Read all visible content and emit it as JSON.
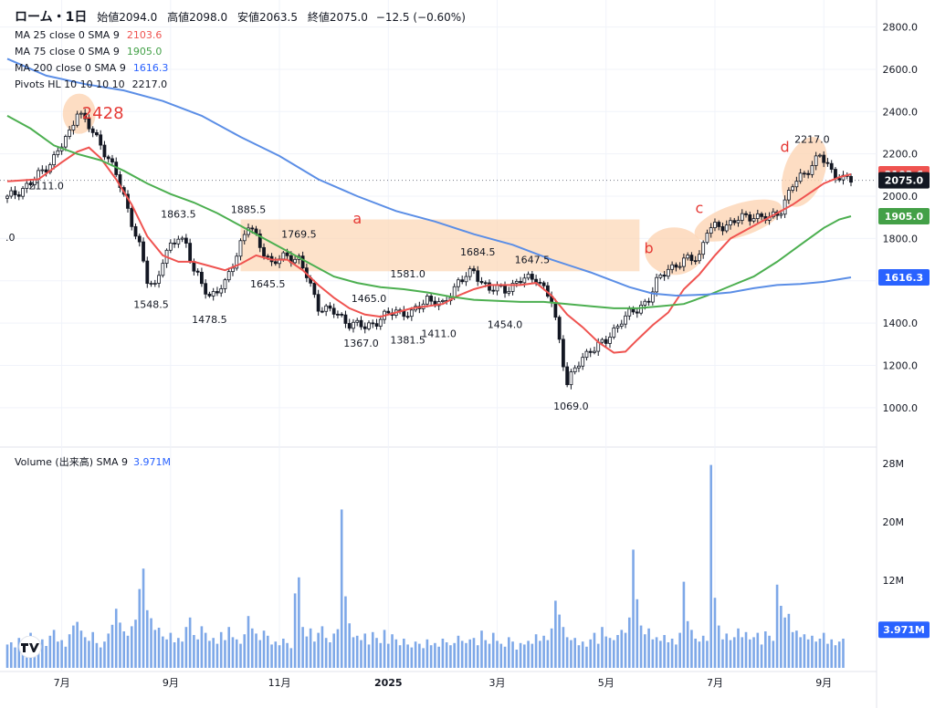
{
  "header": {
    "symbol_title": "ローム・1日",
    "open_label": "始値",
    "open": "2094.0",
    "high_label": "高値",
    "high": "2098.0",
    "low_label": "安値",
    "low": "2063.5",
    "close_label": "終値",
    "close": "2075.0",
    "change": "−12.5 (−0.60%)"
  },
  "legend": [
    {
      "label": "MA 25 close 0 SMA 9",
      "value": "2103.6",
      "color": "#ef5350"
    },
    {
      "label": "MA 75 close 0 SMA 9",
      "value": "1905.0",
      "color": "#4caf50"
    },
    {
      "label": "MA 200 close 0 SMA 9",
      "value": "1616.3",
      "color": "#2962ff"
    },
    {
      "label": "Pivots HL 10 10 10 10",
      "value": "2217.0",
      "color": "#131722"
    }
  ],
  "volume_legend": {
    "label": "Volume (出来高) SMA 9",
    "value": "3.971M"
  },
  "colors": {
    "up": "#ffffff",
    "down": "#131722",
    "ma25": "#ef5350",
    "ma75": "#4caf50",
    "ma200": "#5b8ee6",
    "volume": "#7ea8e8",
    "highlight": "#fcd5b4",
    "annotation": "#e53935"
  },
  "chart_data": {
    "type": "line",
    "price_axis": {
      "ylim": [
        900,
        2850
      ],
      "ticks": [
        1000,
        1200,
        1400,
        1600,
        1800,
        2000,
        2200,
        2400,
        2600,
        2800
      ],
      "tick_labels": [
        "1000.0",
        "1200.0",
        "1400.0",
        "1600.0",
        "1800.0",
        "2000.0",
        "2200.0",
        "2400.0",
        "2600.0",
        "2800.0"
      ]
    },
    "volume_axis": {
      "ylim": [
        0,
        29
      ],
      "ticks": [
        12,
        20,
        28
      ],
      "tick_labels": [
        "12M",
        "20M",
        "28M"
      ]
    },
    "time_axis_labels": [
      "7月",
      "9月",
      "11月",
      "2025",
      "3月",
      "5月",
      "7月",
      "9月"
    ],
    "time_axis_index": [
      14,
      42,
      70,
      98,
      126,
      154,
      182,
      210
    ],
    "n_days": 218,
    "price_path": [
      [
        0,
        1990
      ],
      [
        6,
        2060
      ],
      [
        12,
        2180
      ],
      [
        16,
        2300
      ],
      [
        18,
        2410
      ],
      [
        20,
        2350
      ],
      [
        24,
        2250
      ],
      [
        28,
        2100
      ],
      [
        30,
        2000
      ],
      [
        32,
        1880
      ],
      [
        34,
        1760
      ],
      [
        36,
        1600
      ],
      [
        38,
        1580
      ],
      [
        40,
        1700
      ],
      [
        44,
        1810
      ],
      [
        46,
        1780
      ],
      [
        48,
        1640
      ],
      [
        52,
        1530
      ],
      [
        56,
        1580
      ],
      [
        60,
        1780
      ],
      [
        62,
        1860
      ],
      [
        64,
        1800
      ],
      [
        68,
        1680
      ],
      [
        72,
        1720
      ],
      [
        75,
        1700
      ],
      [
        77,
        1620
      ],
      [
        80,
        1480
      ],
      [
        84,
        1450
      ],
      [
        88,
        1400
      ],
      [
        92,
        1380
      ],
      [
        96,
        1420
      ],
      [
        100,
        1460
      ],
      [
        104,
        1440
      ],
      [
        108,
        1520
      ],
      [
        112,
        1480
      ],
      [
        116,
        1600
      ],
      [
        120,
        1640
      ],
      [
        124,
        1560
      ],
      [
        128,
        1560
      ],
      [
        132,
        1600
      ],
      [
        136,
        1620
      ],
      [
        138,
        1560
      ],
      [
        140,
        1500
      ],
      [
        142,
        1320
      ],
      [
        144,
        1120
      ],
      [
        146,
        1180
      ],
      [
        150,
        1280
      ],
      [
        154,
        1310
      ],
      [
        158,
        1420
      ],
      [
        162,
        1460
      ],
      [
        165,
        1520
      ],
      [
        167,
        1590
      ],
      [
        170,
        1660
      ],
      [
        174,
        1690
      ],
      [
        178,
        1720
      ],
      [
        180,
        1840
      ],
      [
        184,
        1860
      ],
      [
        188,
        1890
      ],
      [
        192,
        1910
      ],
      [
        196,
        1890
      ],
      [
        199,
        1940
      ],
      [
        202,
        2050
      ],
      [
        206,
        2130
      ],
      [
        209,
        2190
      ],
      [
        212,
        2120
      ],
      [
        215,
        2080
      ],
      [
        217,
        2075
      ]
    ],
    "series": [
      {
        "name": "MA 25 close 0 SMA 9",
        "points": [
          [
            0,
            2070
          ],
          [
            8,
            2080
          ],
          [
            14,
            2160
          ],
          [
            18,
            2210
          ],
          [
            21,
            2230
          ],
          [
            24,
            2180
          ],
          [
            28,
            2080
          ],
          [
            32,
            1960
          ],
          [
            36,
            1810
          ],
          [
            40,
            1720
          ],
          [
            44,
            1690
          ],
          [
            48,
            1690
          ],
          [
            52,
            1670
          ],
          [
            56,
            1650
          ],
          [
            60,
            1680
          ],
          [
            64,
            1720
          ],
          [
            68,
            1700
          ],
          [
            72,
            1700
          ],
          [
            76,
            1650
          ],
          [
            80,
            1580
          ],
          [
            84,
            1520
          ],
          [
            88,
            1470
          ],
          [
            92,
            1440
          ],
          [
            96,
            1430
          ],
          [
            100,
            1450
          ],
          [
            104,
            1470
          ],
          [
            108,
            1480
          ],
          [
            112,
            1490
          ],
          [
            116,
            1530
          ],
          [
            120,
            1560
          ],
          [
            124,
            1580
          ],
          [
            128,
            1580
          ],
          [
            132,
            1580
          ],
          [
            136,
            1590
          ],
          [
            140,
            1530
          ],
          [
            144,
            1440
          ],
          [
            148,
            1380
          ],
          [
            152,
            1310
          ],
          [
            156,
            1260
          ],
          [
            159,
            1265
          ],
          [
            162,
            1320
          ],
          [
            166,
            1390
          ],
          [
            170,
            1450
          ],
          [
            174,
            1560
          ],
          [
            178,
            1630
          ],
          [
            182,
            1720
          ],
          [
            186,
            1800
          ],
          [
            190,
            1840
          ],
          [
            194,
            1880
          ],
          [
            198,
            1920
          ],
          [
            202,
            1960
          ],
          [
            206,
            2010
          ],
          [
            210,
            2060
          ],
          [
            214,
            2090
          ],
          [
            217,
            2103.6
          ]
        ]
      },
      {
        "name": "MA 75 close 0 SMA 9",
        "points": [
          [
            0,
            2380
          ],
          [
            6,
            2320
          ],
          [
            12,
            2240
          ],
          [
            18,
            2200
          ],
          [
            24,
            2170
          ],
          [
            30,
            2120
          ],
          [
            36,
            2060
          ],
          [
            42,
            2010
          ],
          [
            48,
            1970
          ],
          [
            54,
            1920
          ],
          [
            60,
            1860
          ],
          [
            66,
            1800
          ],
          [
            72,
            1740
          ],
          [
            78,
            1680
          ],
          [
            84,
            1620
          ],
          [
            90,
            1590
          ],
          [
            96,
            1570
          ],
          [
            102,
            1560
          ],
          [
            108,
            1545
          ],
          [
            114,
            1525
          ],
          [
            120,
            1510
          ],
          [
            126,
            1505
          ],
          [
            132,
            1500
          ],
          [
            138,
            1500
          ],
          [
            144,
            1490
          ],
          [
            150,
            1480
          ],
          [
            156,
            1470
          ],
          [
            162,
            1470
          ],
          [
            168,
            1480
          ],
          [
            174,
            1490
          ],
          [
            180,
            1530
          ],
          [
            186,
            1575
          ],
          [
            192,
            1620
          ],
          [
            198,
            1690
          ],
          [
            204,
            1770
          ],
          [
            210,
            1850
          ],
          [
            214,
            1890
          ],
          [
            217,
            1905
          ]
        ]
      },
      {
        "name": "MA 200 close 0 SMA 9",
        "points": [
          [
            0,
            2650
          ],
          [
            10,
            2570
          ],
          [
            20,
            2530
          ],
          [
            30,
            2500
          ],
          [
            40,
            2450
          ],
          [
            50,
            2380
          ],
          [
            60,
            2280
          ],
          [
            70,
            2190
          ],
          [
            80,
            2080
          ],
          [
            90,
            2000
          ],
          [
            100,
            1930
          ],
          [
            110,
            1880
          ],
          [
            120,
            1820
          ],
          [
            130,
            1770
          ],
          [
            140,
            1700
          ],
          [
            150,
            1640
          ],
          [
            160,
            1570
          ],
          [
            166,
            1540
          ],
          [
            172,
            1530
          ],
          [
            180,
            1535
          ],
          [
            186,
            1545
          ],
          [
            192,
            1565
          ],
          [
            198,
            1580
          ],
          [
            204,
            1585
          ],
          [
            210,
            1595
          ],
          [
            217,
            1616.3
          ]
        ]
      }
    ],
    "volume_values": [
      3.2,
      3.5,
      2.8,
      4.1,
      2.9,
      3.3,
      4.8,
      3.1,
      2.6,
      3.9,
      3.0,
      4.4,
      5.2,
      3.6,
      3.8,
      2.9,
      4.6,
      5.8,
      6.3,
      5.1,
      4.2,
      3.7,
      4.9,
      3.4,
      2.8,
      3.6,
      4.7,
      5.9,
      8.1,
      6.2,
      5.0,
      4.4,
      5.7,
      6.6,
      10.8,
      13.6,
      7.9,
      6.8,
      5.2,
      5.5,
      4.3,
      3.9,
      4.8,
      3.5,
      4.1,
      3.6,
      5.6,
      6.9,
      4.5,
      3.9,
      5.7,
      4.8,
      3.7,
      4.1,
      3.3,
      4.9,
      3.8,
      5.6,
      4.2,
      3.9,
      3.3,
      4.6,
      7.1,
      5.4,
      4.7,
      3.8,
      5.1,
      4.4,
      3.2,
      3.6,
      3.1,
      4.0,
      3.4,
      2.7,
      10.2,
      12.4,
      5.6,
      4.3,
      5.4,
      3.6,
      4.8,
      5.7,
      4.1,
      3.5,
      4.7,
      5.3,
      21.7,
      9.8,
      6.1,
      4.2,
      4.4,
      3.8,
      4.7,
      3.2,
      4.9,
      4.1,
      3.4,
      5.2,
      3.3,
      4.6,
      3.9,
      3.1,
      4.0,
      3.2,
      2.8,
      3.6,
      3.3,
      2.7,
      3.9,
      3.1,
      3.4,
      2.9,
      4.0,
      3.5,
      3.1,
      3.4,
      4.4,
      3.7,
      3.4,
      3.9,
      4.1,
      3.1,
      5.1,
      3.8,
      3.3,
      4.8,
      3.7,
      3.3,
      2.9,
      4.2,
      3.6,
      2.5,
      3.4,
      3.2,
      3.7,
      3.3,
      4.6,
      3.7,
      4.4,
      3.8,
      5.4,
      9.2,
      7.3,
      5.6,
      4.2,
      3.8,
      4.1,
      3.1,
      3.6,
      2.9,
      3.9,
      4.8,
      3.3,
      5.6,
      4.3,
      4.1,
      3.8,
      4.5,
      5.2,
      4.8,
      6.9,
      16.2,
      9.4,
      5.8,
      4.6,
      5.4,
      3.9,
      4.2,
      3.7,
      4.5,
      3.5,
      4.0,
      3.2,
      4.8,
      11.8,
      6.4,
      5.2,
      4.0,
      3.6,
      4.4,
      3.7,
      27.8,
      9.6,
      5.8,
      3.9,
      4.7,
      3.8,
      4.2,
      5.4,
      4.2,
      4.9,
      3.9,
      4.2,
      4.8,
      3.2,
      5.0,
      4.4,
      3.7,
      11.4,
      8.5,
      6.9,
      7.4,
      4.9,
      5.1,
      4.2,
      4.6,
      3.9,
      4.4,
      3.6,
      4.0,
      4.8,
      3.3,
      3.9,
      3.1,
      3.6,
      4.0
    ],
    "pivot_labels": [
      {
        "i": 10,
        "v": 2111,
        "text": "2111.0",
        "pos": "below"
      },
      {
        "i": 18,
        "v": 2428,
        "text": "2428",
        "pos": "above"
      },
      {
        "i": 37,
        "v": 1548.5,
        "text": "1548.5",
        "pos": "below"
      },
      {
        "i": 44,
        "v": 1863.5,
        "text": "1863.5",
        "pos": "above"
      },
      {
        "i": 52,
        "v": 1478.5,
        "text": "1478.5",
        "pos": "below"
      },
      {
        "i": 62,
        "v": 1885.5,
        "text": "1885.5",
        "pos": "above"
      },
      {
        "i": 67,
        "v": 1645.5,
        "text": "1645.5",
        "pos": "below"
      },
      {
        "i": 75,
        "v": 1769.5,
        "text": "1769.5",
        "pos": "above"
      },
      {
        "i": 91,
        "v": 1367.0,
        "text": "1367.0",
        "pos": "below"
      },
      {
        "i": 93,
        "v": 1465.0,
        "text": "1465.0",
        "pos": "above"
      },
      {
        "i": 103,
        "v": 1381.5,
        "text": "1381.5",
        "pos": "below"
      },
      {
        "i": 103,
        "v": 1581.0,
        "text": "1581.0",
        "pos": "above"
      },
      {
        "i": 111,
        "v": 1411.0,
        "text": "1411.0",
        "pos": "below"
      },
      {
        "i": 121,
        "v": 1684.5,
        "text": "1684.5",
        "pos": "above"
      },
      {
        "i": 128,
        "v": 1454.0,
        "text": "1454.0",
        "pos": "below"
      },
      {
        "i": 135,
        "v": 1647.5,
        "text": "1647.5",
        "pos": "above"
      },
      {
        "i": 145,
        "v": 1069.0,
        "text": "1069.0",
        "pos": "below"
      },
      {
        "i": 207,
        "v": 2217.0,
        "text": "2217.0",
        "pos": "above"
      },
      {
        "i": 0,
        "v": 1840,
        "text": ".0",
        "pos": "above"
      }
    ],
    "annotations": [
      {
        "text": "a",
        "i": 90,
        "v": 1870
      },
      {
        "text": "b",
        "i": 165,
        "v": 1730
      },
      {
        "text": "c",
        "i": 178,
        "v": 1920
      },
      {
        "text": "d",
        "i": 200,
        "v": 2210
      }
    ],
    "price_tags": [
      {
        "value": 2103.6,
        "text": "2103.6",
        "bg": "#ef5350",
        "fg": "#ffffff"
      },
      {
        "value": 2075.0,
        "text": "2075.0",
        "bg": "#131722",
        "fg": "#ffffff"
      },
      {
        "value": 1905.0,
        "text": "1905.0",
        "bg": "#43a047",
        "fg": "#ffffff"
      },
      {
        "value": 1616.3,
        "text": "1616.3",
        "bg": "#2962ff",
        "fg": "#ffffff"
      }
    ],
    "volume_tag": {
      "text": "3.971M",
      "bg": "#2962ff",
      "fg": "#ffffff"
    },
    "last_price_line": 2075.0
  }
}
